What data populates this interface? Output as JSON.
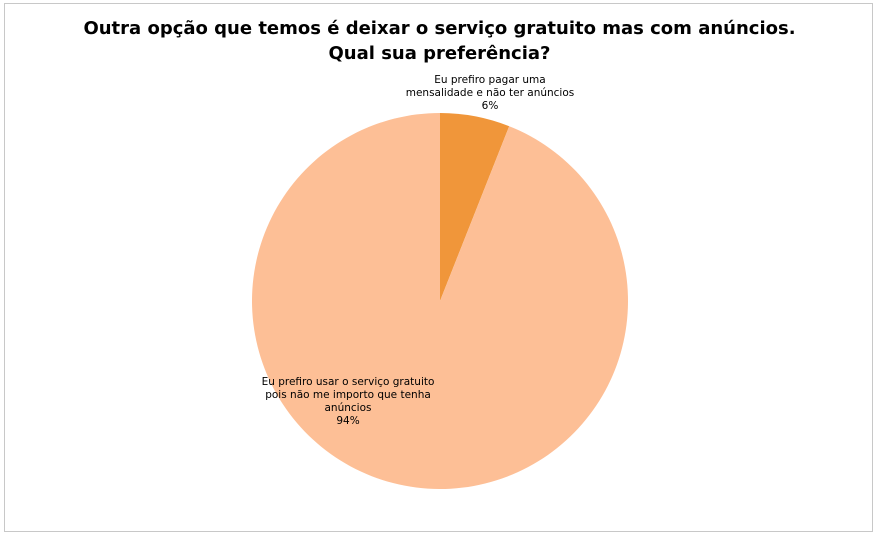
{
  "chart_data": {
    "type": "pie",
    "title": "Outra opção que temos é deixar o serviço gratuito mas com anúncios. Qual sua preferência?",
    "title_lines": [
      "Outra opção que temos é deixar o serviço gratuito mas com anúncios.",
      "Qual sua preferência?"
    ],
    "slices": [
      {
        "label": "Eu prefiro pagar uma mensalidade e não ter anúncios",
        "label_lines": [
          "Eu prefiro pagar uma",
          "mensalidade e não ter anúncios"
        ],
        "value": 6,
        "value_label": "6%",
        "color": "#F0963A"
      },
      {
        "label": "Eu prefiro usar o serviço gratuito pois não me importo que tenha anúncios",
        "label_lines": [
          "Eu prefiro usar o serviço gratuito",
          "pois não me importo que tenha",
          "anúncios"
        ],
        "value": 94,
        "value_label": "94%",
        "color": "#FDBF96"
      }
    ],
    "legend": "none"
  }
}
